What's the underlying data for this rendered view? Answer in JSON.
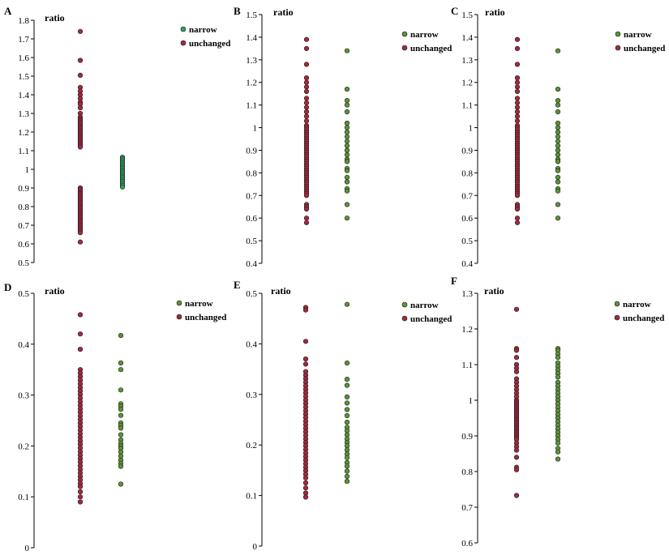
{
  "figure": {
    "background": "#ffffff"
  },
  "legend_colors": {
    "narrow_A": "#2fa060",
    "narrow": "#5c9436",
    "unchanged": "#a12a3e"
  },
  "chart_data": [
    {
      "panel": "A",
      "type": "scatter",
      "ylabel": "ratio",
      "ylim": [
        0.5,
        1.8
      ],
      "ticks": [
        0.5,
        0.6,
        0.7,
        0.8,
        0.9,
        1,
        1.1,
        1.2,
        1.3,
        1.4,
        1.5,
        1.6,
        1.7,
        1.8
      ],
      "legend": [
        {
          "label": "narrow",
          "color": "#2fa060"
        },
        {
          "label": "unchanged",
          "color": "#a12a3e"
        }
      ],
      "series": [
        {
          "name": "unchanged",
          "color": "#a12a3e",
          "column": 1,
          "values": [
            1.74,
            1.585,
            1.505,
            1.44,
            1.42,
            1.4,
            1.38,
            1.36,
            1.35,
            1.33,
            1.3,
            1.28,
            1.27,
            1.26,
            1.25,
            1.24,
            1.23,
            1.22,
            1.21,
            1.2,
            1.19,
            1.18,
            1.17,
            1.16,
            1.15,
            1.14,
            1.13,
            1.12,
            0.9,
            0.89,
            0.88,
            0.87,
            0.86,
            0.85,
            0.84,
            0.83,
            0.82,
            0.81,
            0.8,
            0.79,
            0.78,
            0.77,
            0.76,
            0.75,
            0.74,
            0.73,
            0.72,
            0.71,
            0.7,
            0.69,
            0.68,
            0.67,
            0.66,
            0.61
          ]
        },
        {
          "name": "narrow",
          "color": "#2fa060",
          "column": 2,
          "values": [
            1.065,
            1.055,
            1.045,
            1.035,
            1.025,
            1.015,
            1.005,
            0.995,
            0.985,
            0.975,
            0.965,
            0.955,
            0.945,
            0.935,
            0.925,
            0.915,
            0.905
          ]
        }
      ]
    },
    {
      "panel": "B",
      "type": "scatter",
      "ylabel": "ratio",
      "ylim": [
        0.4,
        1.5
      ],
      "ticks": [
        0.4,
        0.5,
        0.6,
        0.7,
        0.8,
        0.9,
        1,
        1.1,
        1.2,
        1.3,
        1.4,
        1.5
      ],
      "legend": [
        {
          "label": "narrow",
          "color": "#5c9436"
        },
        {
          "label": "unchanged",
          "color": "#a12a3e"
        }
      ],
      "series": [
        {
          "name": "unchanged",
          "color": "#a12a3e",
          "column": 1,
          "values": [
            1.39,
            1.35,
            1.28,
            1.22,
            1.2,
            1.18,
            1.16,
            1.13,
            1.11,
            1.09,
            1.07,
            1.05,
            1.03,
            1.01,
            1.0,
            0.99,
            0.98,
            0.97,
            0.96,
            0.95,
            0.94,
            0.93,
            0.92,
            0.91,
            0.9,
            0.89,
            0.88,
            0.87,
            0.86,
            0.85,
            0.84,
            0.83,
            0.82,
            0.81,
            0.8,
            0.79,
            0.78,
            0.77,
            0.76,
            0.75,
            0.74,
            0.73,
            0.72,
            0.71,
            0.7,
            0.66,
            0.65,
            0.64,
            0.6,
            0.58
          ]
        },
        {
          "name": "narrow",
          "color": "#5c9436",
          "column": 2,
          "values": [
            1.34,
            1.17,
            1.12,
            1.1,
            1.07,
            1.02,
            1.0,
            0.98,
            0.96,
            0.94,
            0.92,
            0.9,
            0.88,
            0.86,
            0.85,
            0.82,
            0.81,
            0.78,
            0.76,
            0.73,
            0.72,
            0.66,
            0.6
          ]
        }
      ]
    },
    {
      "panel": "C",
      "type": "scatter",
      "ylabel": "ratio",
      "ylim": [
        0.4,
        1.5
      ],
      "ticks": [
        0.4,
        0.5,
        0.6,
        0.7,
        0.8,
        0.9,
        1,
        1.1,
        1.2,
        1.3,
        1.4,
        1.5
      ],
      "legend": [
        {
          "label": "narrow",
          "color": "#5c9436"
        },
        {
          "label": "unchanged",
          "color": "#a12a3e"
        }
      ],
      "series": [
        {
          "name": "unchanged",
          "color": "#a12a3e",
          "column": 1,
          "values": [
            1.39,
            1.35,
            1.28,
            1.22,
            1.2,
            1.18,
            1.16,
            1.13,
            1.11,
            1.09,
            1.07,
            1.05,
            1.03,
            1.01,
            1.0,
            0.99,
            0.98,
            0.97,
            0.96,
            0.95,
            0.94,
            0.93,
            0.92,
            0.91,
            0.9,
            0.89,
            0.88,
            0.87,
            0.86,
            0.85,
            0.84,
            0.83,
            0.82,
            0.81,
            0.8,
            0.79,
            0.78,
            0.77,
            0.76,
            0.75,
            0.74,
            0.73,
            0.72,
            0.71,
            0.7,
            0.66,
            0.65,
            0.64,
            0.6,
            0.58
          ]
        },
        {
          "name": "narrow",
          "color": "#5c9436",
          "column": 2,
          "values": [
            1.34,
            1.17,
            1.12,
            1.1,
            1.07,
            1.02,
            1.0,
            0.98,
            0.96,
            0.94,
            0.92,
            0.9,
            0.88,
            0.86,
            0.85,
            0.82,
            0.81,
            0.78,
            0.76,
            0.73,
            0.72,
            0.66,
            0.6
          ]
        }
      ]
    },
    {
      "panel": "D",
      "type": "scatter",
      "ylabel": "ratio",
      "ylim": [
        0,
        0.5
      ],
      "ticks": [
        0,
        0.1,
        0.2,
        0.3,
        0.4,
        0.5
      ],
      "legend": [
        {
          "label": "narrow",
          "color": "#5c9436"
        },
        {
          "label": "unchanged",
          "color": "#a12a3e"
        }
      ],
      "series": [
        {
          "name": "unchanged",
          "color": "#a12a3e",
          "column": 1,
          "values": [
            0.458,
            0.42,
            0.39,
            0.35,
            0.343,
            0.336,
            0.329,
            0.322,
            0.315,
            0.308,
            0.301,
            0.294,
            0.287,
            0.28,
            0.273,
            0.266,
            0.259,
            0.252,
            0.245,
            0.238,
            0.231,
            0.224,
            0.217,
            0.21,
            0.203,
            0.196,
            0.189,
            0.182,
            0.175,
            0.168,
            0.161,
            0.154,
            0.147,
            0.14,
            0.133,
            0.126,
            0.12,
            0.11,
            0.1,
            0.09
          ]
        },
        {
          "name": "narrow",
          "color": "#5c9436",
          "column": 2,
          "values": [
            0.417,
            0.363,
            0.35,
            0.31,
            0.283,
            0.278,
            0.272,
            0.26,
            0.245,
            0.24,
            0.235,
            0.222,
            0.212,
            0.205,
            0.2,
            0.195,
            0.188,
            0.18,
            0.172,
            0.166,
            0.16,
            0.125
          ]
        }
      ]
    },
    {
      "panel": "E",
      "type": "scatter",
      "ylabel": "ratio",
      "ylim": [
        0,
        0.5
      ],
      "ticks": [
        0,
        0.1,
        0.2,
        0.3,
        0.4,
        0.5
      ],
      "legend": [
        {
          "label": "narrow",
          "color": "#5c9436"
        },
        {
          "label": "unchanged",
          "color": "#a12a3e"
        }
      ],
      "series": [
        {
          "name": "unchanged",
          "color": "#a12a3e",
          "column": 1,
          "values": [
            0.472,
            0.467,
            0.405,
            0.37,
            0.36,
            0.345,
            0.338,
            0.331,
            0.324,
            0.317,
            0.31,
            0.303,
            0.296,
            0.289,
            0.282,
            0.275,
            0.268,
            0.261,
            0.254,
            0.247,
            0.24,
            0.233,
            0.226,
            0.219,
            0.212,
            0.205,
            0.198,
            0.191,
            0.184,
            0.177,
            0.17,
            0.163,
            0.156,
            0.149,
            0.142,
            0.135,
            0.125,
            0.115,
            0.105,
            0.097
          ]
        },
        {
          "name": "narrow",
          "color": "#5c9436",
          "column": 2,
          "values": [
            0.478,
            0.362,
            0.33,
            0.318,
            0.295,
            0.283,
            0.27,
            0.258,
            0.245,
            0.235,
            0.228,
            0.22,
            0.212,
            0.205,
            0.198,
            0.19,
            0.182,
            0.175,
            0.165,
            0.158,
            0.148,
            0.138,
            0.128
          ]
        }
      ]
    },
    {
      "panel": "F",
      "type": "scatter",
      "ylabel": "ratio",
      "ylim": [
        0.6,
        1.3
      ],
      "ticks": [
        0.6,
        0.7,
        0.8,
        0.9,
        1,
        1.1,
        1.2,
        1.3
      ],
      "legend": [
        {
          "label": "narrow",
          "color": "#5c9436"
        },
        {
          "label": "unchanged",
          "color": "#a12a3e"
        }
      ],
      "series": [
        {
          "name": "unchanged",
          "color": "#a12a3e",
          "column": 1,
          "values": [
            1.255,
            1.145,
            1.14,
            1.12,
            1.1,
            1.09,
            1.08,
            1.06,
            1.05,
            1.04,
            1.03,
            1.02,
            1.01,
            1.0,
            0.995,
            0.99,
            0.985,
            0.98,
            0.975,
            0.97,
            0.965,
            0.96,
            0.955,
            0.95,
            0.945,
            0.94,
            0.935,
            0.93,
            0.925,
            0.92,
            0.915,
            0.91,
            0.905,
            0.9,
            0.895,
            0.89,
            0.88,
            0.87,
            0.86,
            0.84,
            0.812,
            0.805,
            0.733
          ]
        },
        {
          "name": "narrow",
          "color": "#5c9436",
          "column": 2,
          "values": [
            1.145,
            1.14,
            1.13,
            1.12,
            1.105,
            1.095,
            1.085,
            1.075,
            1.065,
            1.05,
            1.04,
            1.03,
            1.02,
            1.01,
            1.0,
            0.99,
            0.98,
            0.97,
            0.96,
            0.95,
            0.94,
            0.93,
            0.92,
            0.91,
            0.9,
            0.89,
            0.88,
            0.865,
            0.855,
            0.835
          ]
        }
      ]
    }
  ]
}
